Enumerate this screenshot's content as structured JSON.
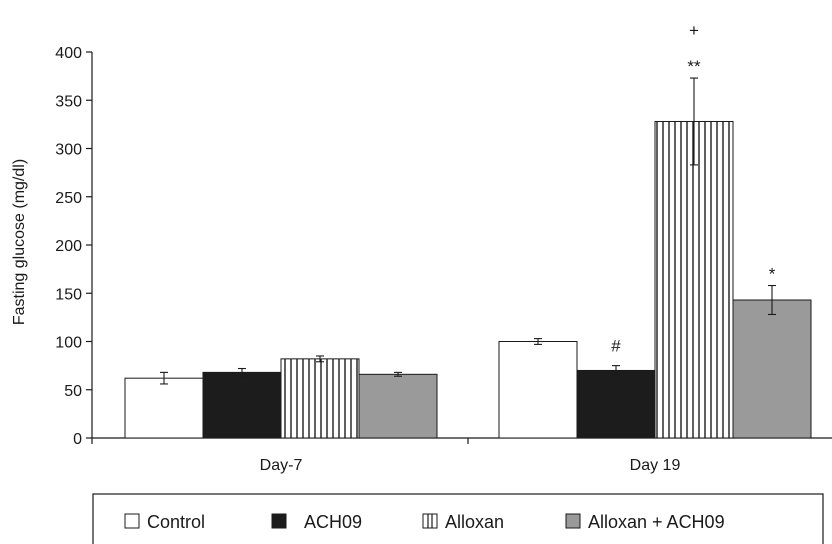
{
  "chart_data": {
    "type": "bar",
    "title": "",
    "xlabel": "",
    "ylabel": "Fasting glucose (mg/dl)",
    "ylim": [
      0,
      400
    ],
    "yticks": [
      0,
      50,
      100,
      150,
      200,
      250,
      300,
      350,
      400
    ],
    "categories": [
      "Day-7",
      "Day 19"
    ],
    "series": [
      {
        "name": "Control",
        "values": [
          62,
          100
        ],
        "errors": [
          6,
          3
        ],
        "pattern": "white"
      },
      {
        "name": "ACH09",
        "values": [
          68,
          70
        ],
        "errors": [
          4,
          5
        ],
        "pattern": "black"
      },
      {
        "name": "Alloxan",
        "values": [
          82,
          328
        ],
        "errors": [
          3,
          45
        ],
        "pattern": "vertical-stripes"
      },
      {
        "name": "Alloxan + ACH09",
        "values": [
          66,
          143
        ],
        "errors": [
          2,
          15
        ],
        "pattern": "gray"
      }
    ],
    "annotations": [
      {
        "category": "Day 19",
        "series": "ACH09",
        "text": "#"
      },
      {
        "category": "Day 19",
        "series": "Alloxan",
        "text": "**"
      },
      {
        "category": "Day 19",
        "series": "Alloxan",
        "text": "+"
      },
      {
        "category": "Day 19",
        "series": "Alloxan + ACH09",
        "text": "*"
      }
    ],
    "grid": false,
    "legend_position": "bottom",
    "colors": {
      "white": "#ffffff",
      "black": "#1c1c1c",
      "gray": "#9a9a9a",
      "stripe": "#1c1c1c",
      "axis": "#1a1a1a"
    }
  }
}
